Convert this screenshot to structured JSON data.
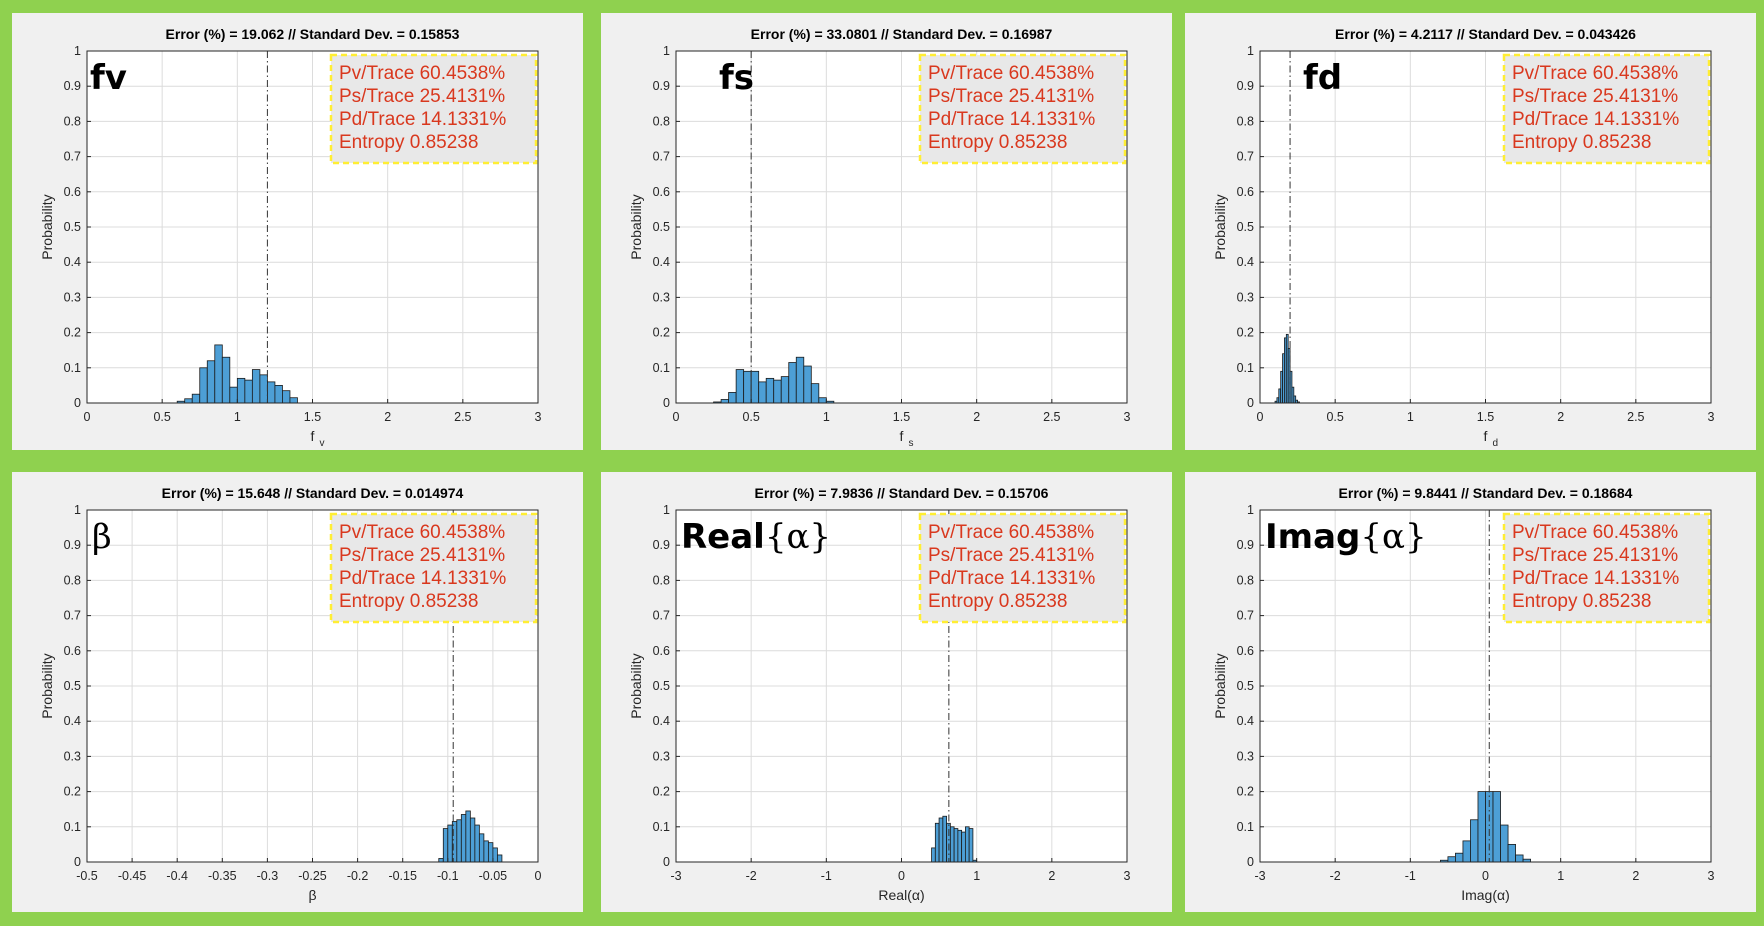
{
  "colors": {
    "background": "#8fd14f",
    "panel": "#f0f0f0",
    "bar_fill": "#4d9fd6",
    "legend_text": "#d9381e",
    "legend_border": "#ffee33",
    "legend_fill": "#e8e8e8"
  },
  "legend_lines": [
    "Pv/Trace 60.4538%",
    "Ps/Trace 25.4131%",
    "Pd/Trace 14.1331%",
    "Entropy 0.85238"
  ],
  "chart_data": [
    {
      "type": "bar",
      "title": "Error (%) = 19.062 // Standard Dev. = 0.15853",
      "panel_label": "fv",
      "xlabel_main": "f",
      "xlabel_sub": "v",
      "ylabel": "Probability",
      "xlim": [
        0,
        3
      ],
      "ylim": [
        0,
        1
      ],
      "xticks": [
        "0",
        "0.5",
        "1",
        "1.5",
        "2",
        "2.5",
        "3"
      ],
      "xtick_values": [
        0,
        0.5,
        1,
        1.5,
        2,
        2.5,
        3
      ],
      "yticks": [
        "0",
        "0.1",
        "0.2",
        "0.3",
        "0.4",
        "0.5",
        "0.6",
        "0.7",
        "0.8",
        "0.9",
        "1"
      ],
      "yline": 1.2,
      "bin_start": 0.6,
      "bin_width": 0.05,
      "values": [
        0.005,
        0.012,
        0.025,
        0.1,
        0.12,
        0.165,
        0.13,
        0.045,
        0.07,
        0.065,
        0.095,
        0.08,
        0.06,
        0.05,
        0.035,
        0.015
      ]
    },
    {
      "type": "bar",
      "title": "Error (%) = 33.0801 // Standard Dev. = 0.16987",
      "panel_label": "fs",
      "xlabel_main": "f",
      "xlabel_sub": "s",
      "ylabel": "Probability",
      "xlim": [
        0,
        3
      ],
      "ylim": [
        0,
        1
      ],
      "xticks": [
        "0",
        "0.5",
        "1",
        "1.5",
        "2",
        "2.5",
        "3"
      ],
      "xtick_values": [
        0,
        0.5,
        1,
        1.5,
        2,
        2.5,
        3
      ],
      "yticks": [
        "0",
        "0.1",
        "0.2",
        "0.3",
        "0.4",
        "0.5",
        "0.6",
        "0.7",
        "0.8",
        "0.9",
        "1"
      ],
      "yline": 0.5,
      "bin_start": 0.25,
      "bin_width": 0.05,
      "values": [
        0.003,
        0.01,
        0.03,
        0.095,
        0.09,
        0.09,
        0.06,
        0.07,
        0.065,
        0.075,
        0.115,
        0.13,
        0.105,
        0.055,
        0.015,
        0.005
      ]
    },
    {
      "type": "bar",
      "title": "Error (%) = 4.2117 // Standard Dev. = 0.043426",
      "panel_label": "fd",
      "xlabel_main": "f",
      "xlabel_sub": "d",
      "ylabel": "Probability",
      "xlim": [
        0,
        3
      ],
      "ylim": [
        0,
        1
      ],
      "xticks": [
        "0",
        "0.5",
        "1",
        "1.5",
        "2",
        "2.5",
        "3"
      ],
      "xtick_values": [
        0,
        0.5,
        1,
        1.5,
        2,
        2.5,
        3
      ],
      "yticks": [
        "0",
        "0.1",
        "0.2",
        "0.3",
        "0.4",
        "0.5",
        "0.6",
        "0.7",
        "0.8",
        "0.9",
        "1"
      ],
      "yline": 0.2,
      "bin_start": 0.1,
      "bin_width": 0.0125,
      "values": [
        0.005,
        0.015,
        0.04,
        0.09,
        0.14,
        0.185,
        0.195,
        0.155,
        0.09,
        0.045,
        0.02,
        0.008,
        0.003
      ]
    },
    {
      "type": "bar",
      "title": "Error (%) = 15.648 // Standard Dev. = 0.014974",
      "panel_label": "β",
      "xlabel_main": "β",
      "xlabel_sub": "",
      "ylabel": "Probability",
      "xlim": [
        -0.5,
        0
      ],
      "ylim": [
        0,
        1
      ],
      "xticks": [
        "-0.5",
        "-0.45",
        "-0.4",
        "-0.35",
        "-0.3",
        "-0.25",
        "-0.2",
        "-0.15",
        "-0.1",
        "-0.05",
        "0"
      ],
      "xtick_values": [
        -0.5,
        -0.45,
        -0.4,
        -0.35,
        -0.3,
        -0.25,
        -0.2,
        -0.15,
        -0.1,
        -0.05,
        0
      ],
      "yticks": [
        "0",
        "0.1",
        "0.2",
        "0.3",
        "0.4",
        "0.5",
        "0.6",
        "0.7",
        "0.8",
        "0.9",
        "1"
      ],
      "yline": -0.094,
      "bin_start": -0.11,
      "bin_width": 0.005,
      "values": [
        0.01,
        0.095,
        0.105,
        0.115,
        0.12,
        0.135,
        0.145,
        0.125,
        0.105,
        0.08,
        0.06,
        0.055,
        0.04,
        0.02
      ]
    },
    {
      "type": "bar",
      "title": "Error (%) = 7.9836 // Standard Dev. = 0.15706",
      "panel_label_main": "Real",
      "panel_label_symbol": "{α}",
      "xlabel_main": "Real(α)",
      "xlabel_sub": "",
      "ylabel": "Probability",
      "xlim": [
        -3,
        3
      ],
      "ylim": [
        0,
        1
      ],
      "xticks": [
        "-3",
        "-2",
        "-1",
        "0",
        "1",
        "2",
        "3"
      ],
      "xtick_values": [
        -3,
        -2,
        -1,
        0,
        1,
        2,
        3
      ],
      "yticks": [
        "0",
        "0.1",
        "0.2",
        "0.3",
        "0.4",
        "0.5",
        "0.6",
        "0.7",
        "0.8",
        "0.9",
        "1"
      ],
      "yline": 0.63,
      "bin_start": 0.4,
      "bin_width": 0.05,
      "values": [
        0.04,
        0.11,
        0.125,
        0.13,
        0.11,
        0.1,
        0.095,
        0.09,
        0.085,
        0.1,
        0.095,
        0.005
      ]
    },
    {
      "type": "bar",
      "title": "Error (%) = 9.8441 // Standard Dev. = 0.18684",
      "panel_label_main": "Imag",
      "panel_label_symbol": "{α}",
      "xlabel_main": "Imag(α)",
      "xlabel_sub": "",
      "ylabel": "Probability",
      "xlim": [
        -3,
        3
      ],
      "ylim": [
        0,
        1
      ],
      "xticks": [
        "-3",
        "-2",
        "-1",
        "0",
        "1",
        "2",
        "3"
      ],
      "xtick_values": [
        -3,
        -2,
        -1,
        0,
        1,
        2,
        3
      ],
      "yticks": [
        "0",
        "0.1",
        "0.2",
        "0.3",
        "0.4",
        "0.5",
        "0.6",
        "0.7",
        "0.8",
        "0.9",
        "1"
      ],
      "yline": 0.05,
      "bin_start": -0.6,
      "bin_width": 0.1,
      "values": [
        0.005,
        0.015,
        0.025,
        0.06,
        0.12,
        0.2,
        0.2,
        0.2,
        0.105,
        0.05,
        0.02,
        0.008
      ]
    }
  ]
}
